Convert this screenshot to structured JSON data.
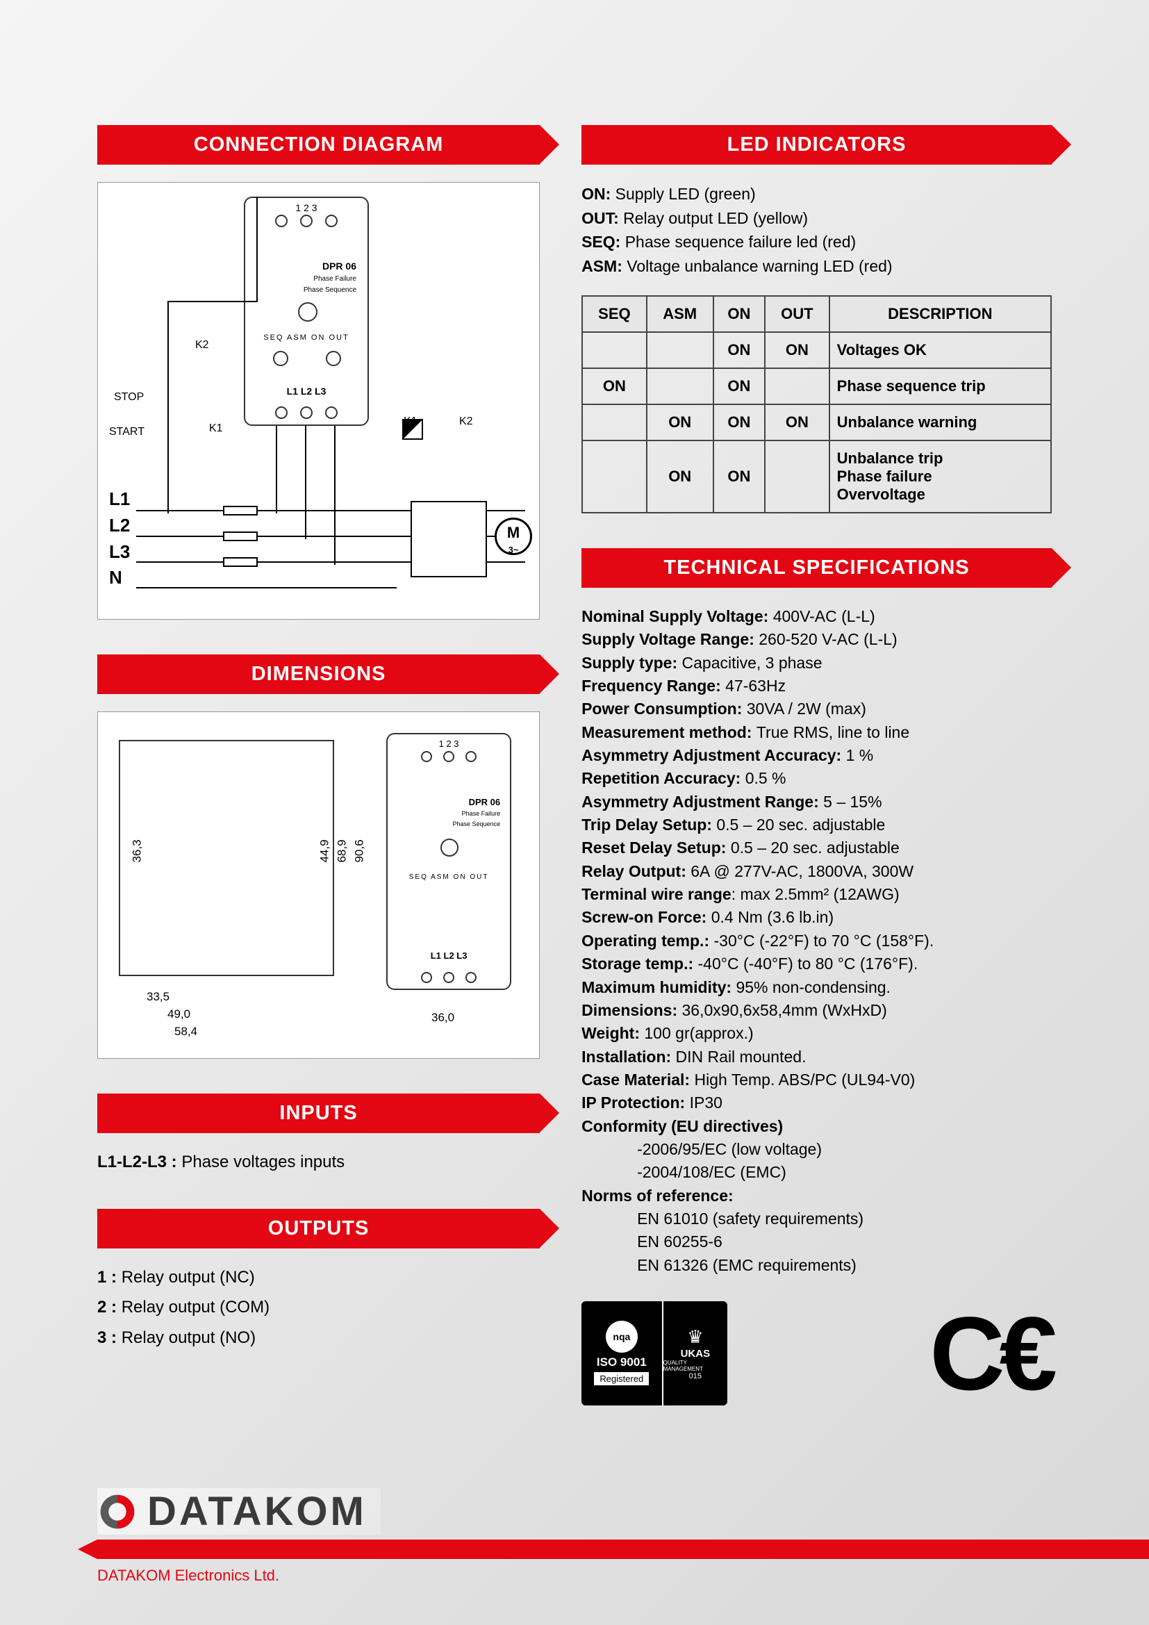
{
  "headers": {
    "connection": "CONNECTION DIAGRAM",
    "dimensions": "DIMENSIONS",
    "inputs": "INPUTS",
    "outputs": "OUTPUTS",
    "led": "LED INDICATORS",
    "tech": "TECHNICAL SPECIFICATIONS"
  },
  "device": {
    "model": "DPR 06",
    "sub1": "Phase Failure",
    "sub2": "Phase Sequence",
    "top_nums": "1   2   3",
    "led_row": "SEQ ASM ON  OUT",
    "bot_label": "L1  L2  L3"
  },
  "conn": {
    "stop": "STOP",
    "start": "START",
    "k1": "K1",
    "k2": "K2",
    "l1": "L1",
    "l2": "L2",
    "l3": "L3",
    "n": "N",
    "motor": "M",
    "motor_sub": "3~"
  },
  "dims": {
    "d1": "36,3",
    "d2": "44,9",
    "d3": "68,9",
    "d4": "90,6",
    "d5": "33,5",
    "d6": "49,0",
    "d7": "58,4",
    "d8": "36,0"
  },
  "inputs_text": {
    "k": "L1-L2-L3 : ",
    "v": "Phase voltages inputs"
  },
  "outputs": [
    {
      "k": "1 : ",
      "v": "Relay output (NC)"
    },
    {
      "k": "2 : ",
      "v": "Relay output (COM)"
    },
    {
      "k": "3 : ",
      "v": "Relay output (NO)"
    }
  ],
  "led_defs": [
    {
      "k": "ON:",
      "v": "Supply LED (green)"
    },
    {
      "k": "OUT:",
      "v": "Relay output LED (yellow)"
    },
    {
      "k": "SEQ:",
      "v": "Phase sequence failure led (red)"
    },
    {
      "k": "ASM:",
      "v": "Voltage unbalance warning LED (red)"
    }
  ],
  "led_table": {
    "cols": [
      "SEQ",
      "ASM",
      "ON",
      "OUT",
      "DESCRIPTION"
    ],
    "rows": [
      {
        "seq": "",
        "asm": "",
        "on": "ON",
        "out": "ON",
        "desc": "Voltages OK"
      },
      {
        "seq": "ON",
        "asm": "",
        "on": "ON",
        "out": "",
        "desc": "Phase sequence trip"
      },
      {
        "seq": "",
        "asm": "ON",
        "on": "ON",
        "out": "ON",
        "desc": "Unbalance warning"
      },
      {
        "seq": "",
        "asm": "ON",
        "on": "ON",
        "out": "",
        "desc": "Unbalance trip\nPhase failure\nOvervoltage"
      }
    ]
  },
  "specs": [
    {
      "k": "Nominal Supply Voltage: ",
      "v": "400V-AC (L-L)"
    },
    {
      "k": "Supply Voltage Range: ",
      "v": "260-520 V-AC (L-L)"
    },
    {
      "k": "Supply type: ",
      "v": "Capacitive, 3 phase"
    },
    {
      "k": "Frequency Range: ",
      "v": "47-63Hz"
    },
    {
      "k": "Power Consumption: ",
      "v": "30VA / 2W  (max)"
    },
    {
      "k": "Measurement method: ",
      "v": "True RMS, line to line"
    },
    {
      "k": "Asymmetry Adjustment Accuracy: ",
      "v": "1 %"
    },
    {
      "k": "Repetition Accuracy: ",
      "v": "0.5 %"
    },
    {
      "k": "Asymmetry Adjustment Range: ",
      "v": "5 – 15%"
    },
    {
      "k": "Trip Delay Setup: ",
      "v": "0.5 – 20 sec. adjustable"
    },
    {
      "k": "Reset Delay Setup: ",
      "v": "0.5 – 20 sec. adjustable"
    },
    {
      "k": "Relay Output: ",
      "v": "6A @ 277V-AC, 1800VA, 300W"
    },
    {
      "k": "Terminal wire range",
      "v": ":  max 2.5mm² (12AWG)"
    },
    {
      "k": "Screw-on Force: ",
      "v": "0.4 Nm (3.6 lb.in)"
    },
    {
      "k": "Operating temp.: ",
      "v": "-30°C (-22°F) to 70 °C (158°F)."
    },
    {
      "k": "Storage temp.:   ",
      "v": "-40°C (-40°F) to 80 °C (176°F)."
    },
    {
      "k": "Maximum humidity: ",
      "v": "95% non-condensing."
    },
    {
      "k": "Dimensions: ",
      "v": "36,0x90,6x58,4mm (WxHxD)"
    },
    {
      "k": "Weight: ",
      "v": "100 gr(approx.)"
    },
    {
      "k": "Installation: ",
      "v": "DIN Rail mounted."
    },
    {
      "k": "Case Material: ",
      "v": "High Temp. ABS/PC (UL94-V0)"
    },
    {
      "k": "IP Protection: ",
      "v": "IP30"
    }
  ],
  "conformity": {
    "title": "Conformity (EU directives)",
    "items": [
      "-2006/95/EC (low voltage)",
      "-2004/108/EC (EMC)"
    ]
  },
  "norms": {
    "title": "Norms of reference:",
    "items": [
      "EN 61010  (safety requirements)",
      "EN 60255-6",
      "EN 61326  (EMC requirements)"
    ]
  },
  "cert": {
    "nqa": "nqa",
    "iso": "ISO 9001",
    "reg": "Registered",
    "ukas": "UKAS",
    "qm": "QUALITY MANAGEMENT",
    "num": "015"
  },
  "ce": "C€",
  "footer": {
    "brand": "DATAKOM",
    "sub": "DATAKOM Electronics Ltd."
  }
}
